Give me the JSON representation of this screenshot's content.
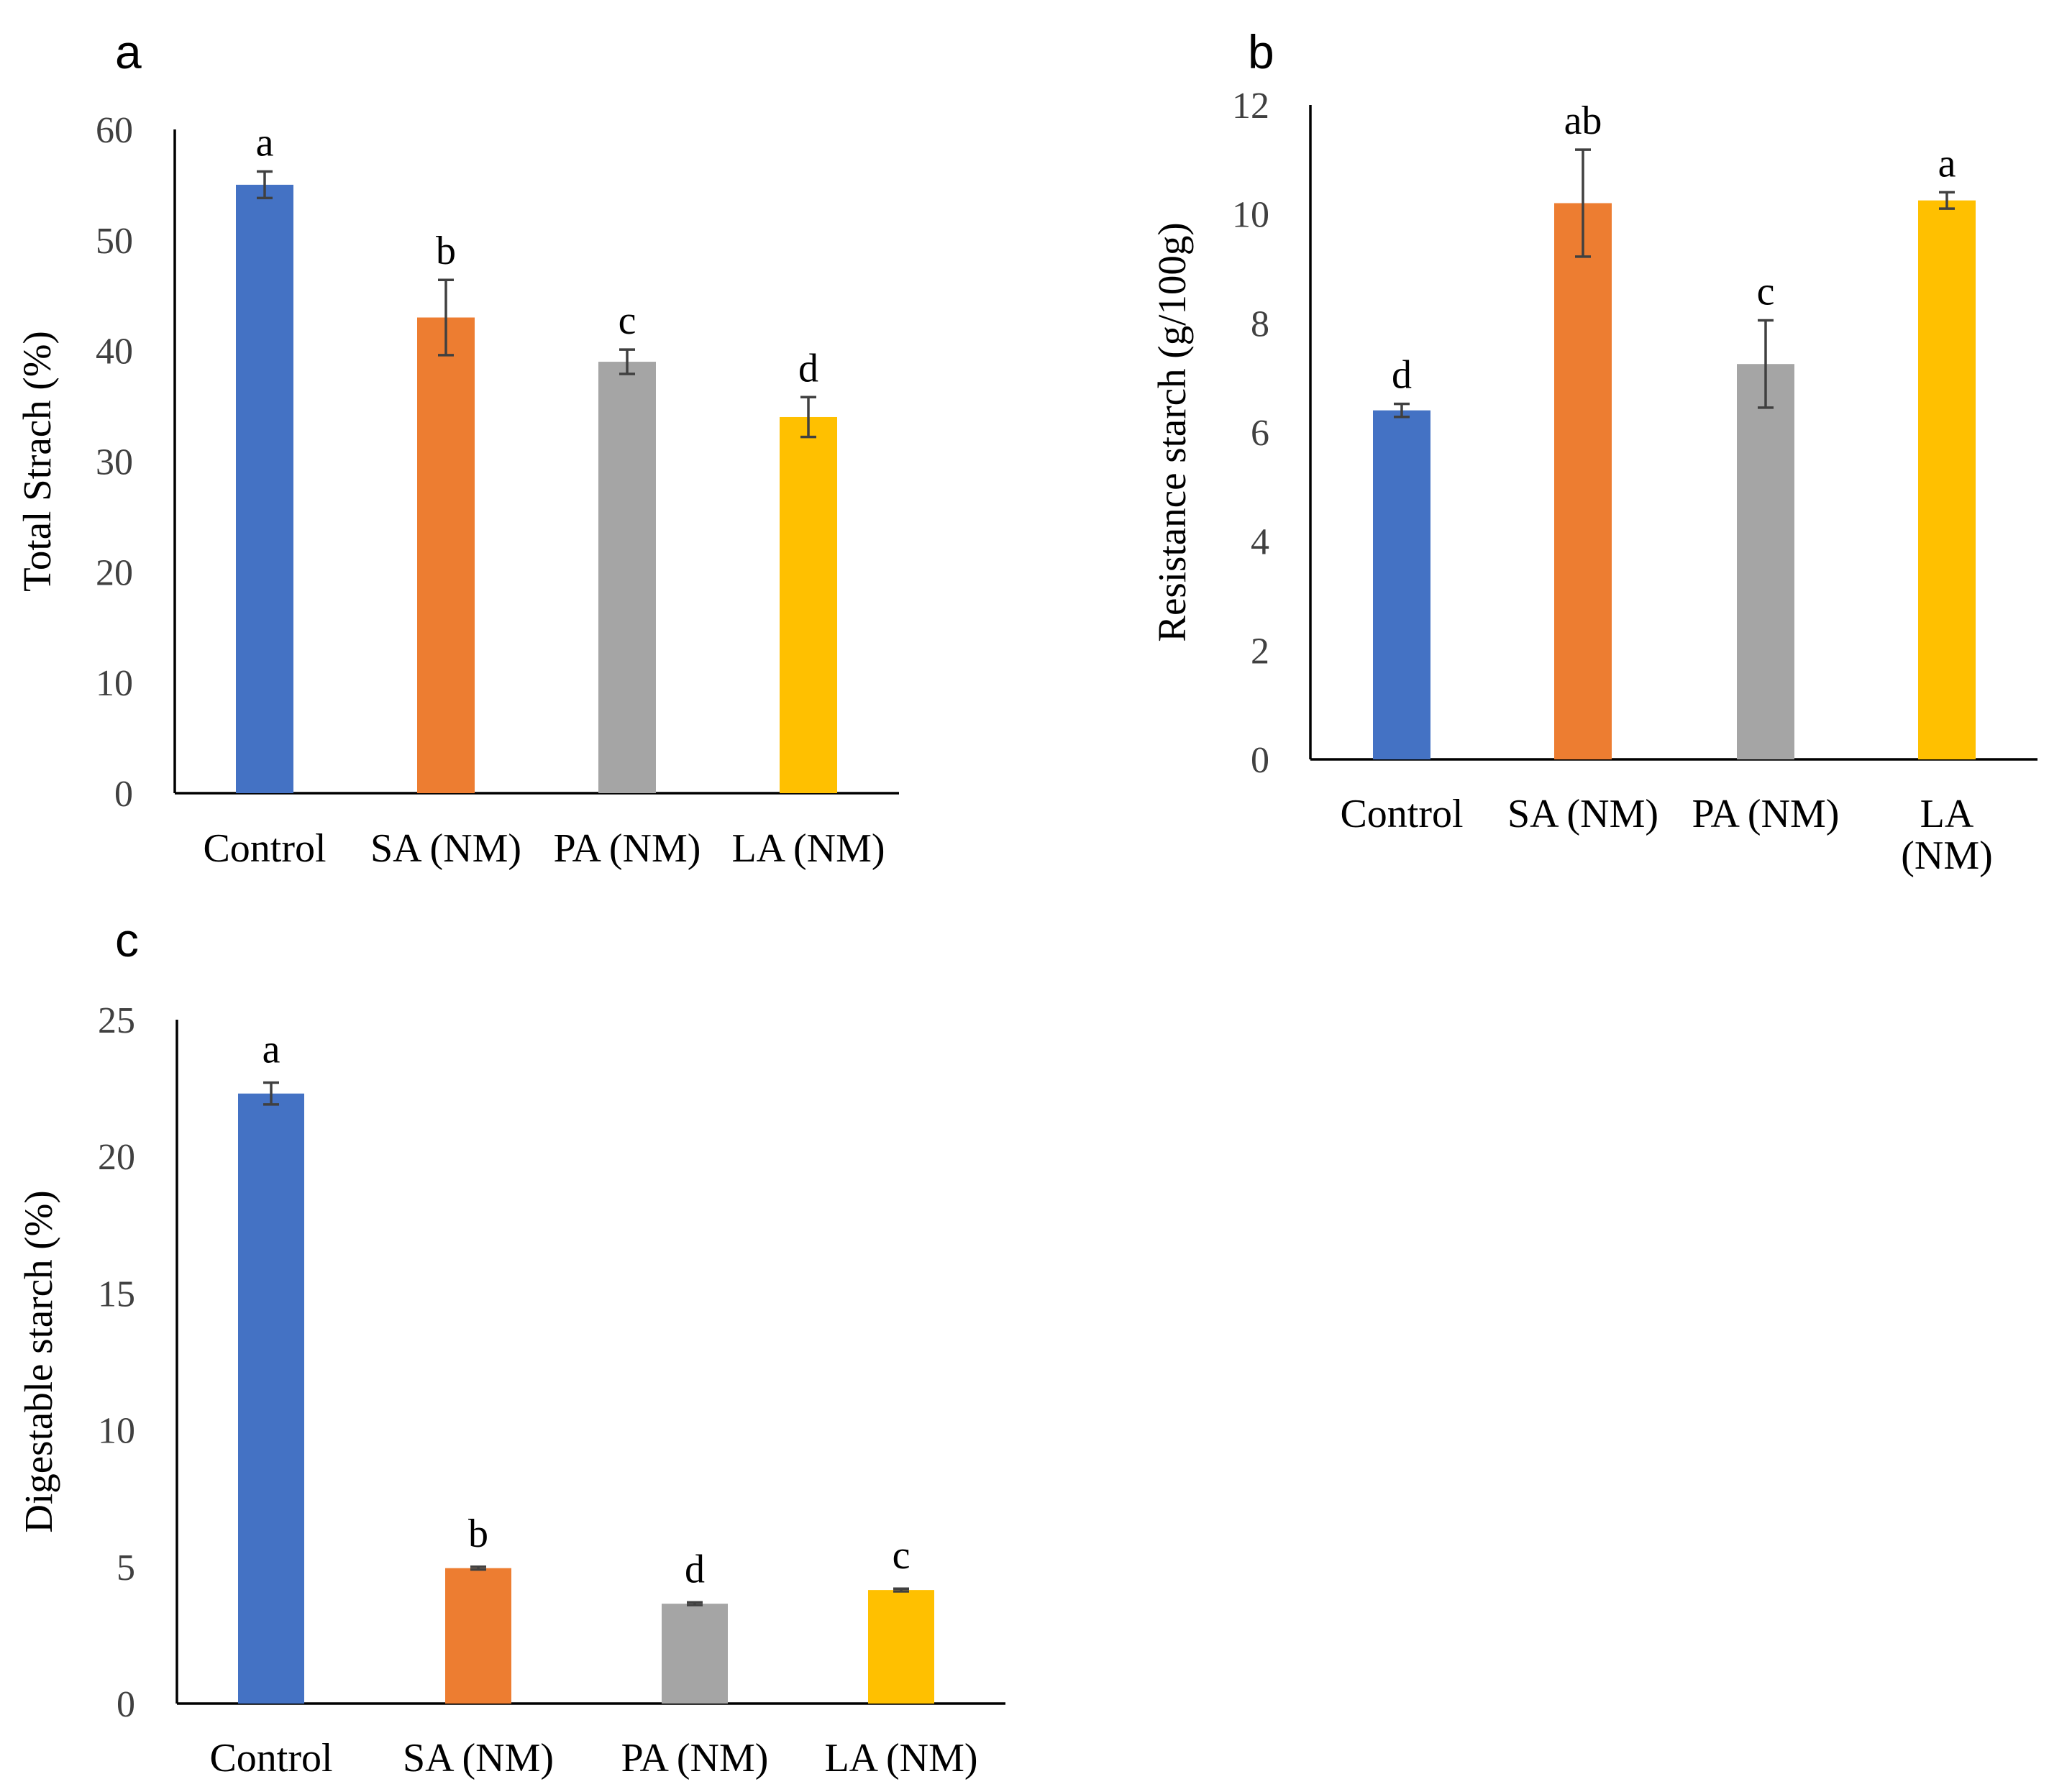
{
  "colors": {
    "Control": "#4472C4",
    "SA (NM)": "#ED7D31",
    "PA (NM)": "#A5A5A5",
    "LA (NM)": "#FFC000"
  },
  "chart_data": [
    {
      "panel": "a",
      "type": "bar",
      "title": "",
      "xlabel": "",
      "ylabel": "Total Strach (%)",
      "ylim": [
        0,
        60
      ],
      "yticks": [
        0,
        10,
        20,
        30,
        40,
        50,
        60
      ],
      "categories": [
        "Control",
        "SA (NM)",
        "PA (NM)",
        "LA (NM)"
      ],
      "category_labels": [
        [
          "Control"
        ],
        [
          "SA (NM)"
        ],
        [
          "PA (NM)"
        ],
        [
          "LA (NM)"
        ]
      ],
      "values": [
        55,
        43,
        39,
        34
      ],
      "errors": [
        1.2,
        3.4,
        1.1,
        1.8
      ],
      "significance": [
        "a",
        "b",
        "c",
        "d"
      ]
    },
    {
      "panel": "b",
      "type": "bar",
      "title": "",
      "xlabel": "",
      "ylabel": "Resistance starch (g/100g)",
      "ylim": [
        0,
        12
      ],
      "yticks": [
        0,
        2,
        4,
        6,
        8,
        10,
        12
      ],
      "categories": [
        "Control",
        "SA (NM)",
        "PA (NM)",
        "LA (NM)"
      ],
      "category_labels": [
        [
          "Control"
        ],
        [
          "SA (NM)"
        ],
        [
          "PA (NM)"
        ],
        [
          "LA",
          "(NM)"
        ]
      ],
      "values": [
        6.4,
        10.2,
        7.25,
        10.25
      ],
      "errors": [
        0.12,
        0.98,
        0.8,
        0.15
      ],
      "significance": [
        "d",
        "ab",
        "c",
        "a"
      ]
    },
    {
      "panel": "c",
      "type": "bar",
      "title": "",
      "xlabel": "",
      "ylabel": "Digestable starch (%)",
      "ylim": [
        0,
        25
      ],
      "yticks": [
        0,
        5,
        10,
        15,
        20,
        25
      ],
      "categories": [
        "Control",
        "SA (NM)",
        "PA (NM)",
        "LA (NM)"
      ],
      "category_labels": [
        [
          "Control"
        ],
        [
          "SA (NM)"
        ],
        [
          "PA (NM)"
        ],
        [
          "LA (NM)"
        ]
      ],
      "values": [
        22.3,
        4.95,
        3.65,
        4.15
      ],
      "errors": [
        0.4,
        0.05,
        0.05,
        0.05
      ],
      "significance": [
        "a",
        "b",
        "d",
        "c"
      ]
    }
  ]
}
